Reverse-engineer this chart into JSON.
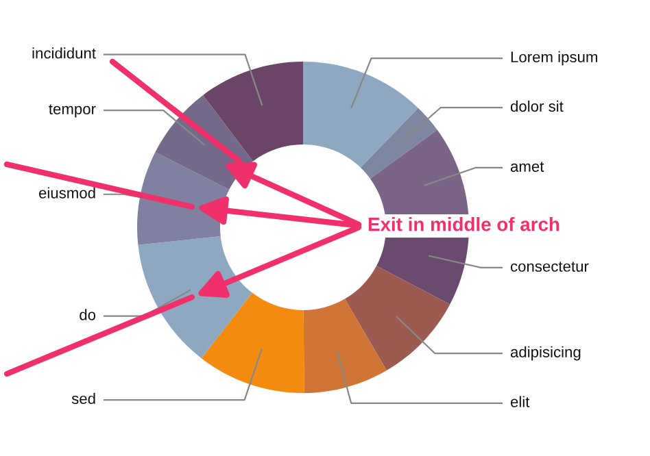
{
  "chart_data": {
    "type": "donut",
    "categories": [
      "Lorem ipsum",
      "dolor sit",
      "amet",
      "consectetur",
      "adipisicing",
      "elit",
      "sed",
      "do",
      "eiusmod",
      "tempor",
      "incididunt"
    ],
    "values": [
      12.2,
      2.8,
      9.4,
      8.3,
      8.9,
      8.3,
      10.6,
      12.8,
      9.2,
      7.2,
      10.3
    ],
    "colors": [
      "#8fa8c2",
      "#7f87a0",
      "#7a6587",
      "#6a4a6e",
      "#9c5a50",
      "#d07535",
      "#f28b0f",
      "#8fa8c2",
      "#8080a0",
      "#766a8a",
      "#6b4566"
    ],
    "annotations": [
      "Exit in middle of arch"
    ],
    "legend": false
  }
}
